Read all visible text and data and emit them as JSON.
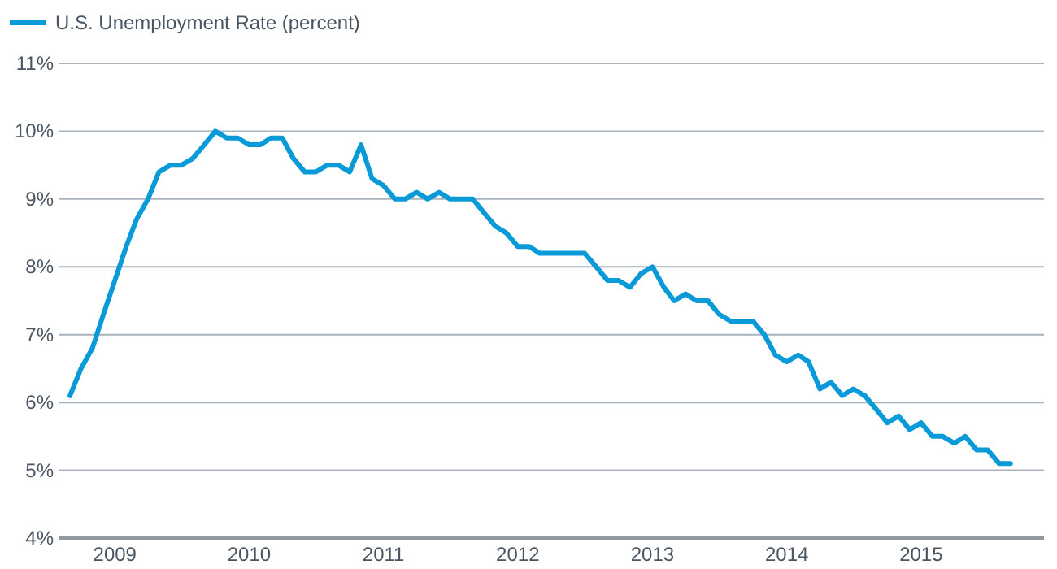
{
  "chart_data": {
    "type": "line",
    "legend": "top left",
    "grid": "y",
    "line_style": "solid",
    "marker": "none",
    "x": [
      "2008-09",
      "2008-10",
      "2008-11",
      "2008-12",
      "2009-01",
      "2009-02",
      "2009-03",
      "2009-04",
      "2009-05",
      "2009-06",
      "2009-07",
      "2009-08",
      "2009-09",
      "2009-10",
      "2009-11",
      "2009-12",
      "2010-01",
      "2010-02",
      "2010-03",
      "2010-04",
      "2010-05",
      "2010-06",
      "2010-07",
      "2010-08",
      "2010-09",
      "2010-10",
      "2010-11",
      "2010-12",
      "2011-01",
      "2011-02",
      "2011-03",
      "2011-04",
      "2011-05",
      "2011-06",
      "2011-07",
      "2011-08",
      "2011-09",
      "2011-10",
      "2011-11",
      "2011-12",
      "2012-01",
      "2012-02",
      "2012-03",
      "2012-04",
      "2012-05",
      "2012-06",
      "2012-07",
      "2012-08",
      "2012-09",
      "2012-10",
      "2012-11",
      "2012-12",
      "2013-01",
      "2013-02",
      "2013-03",
      "2013-04",
      "2013-05",
      "2013-06",
      "2013-07",
      "2013-08",
      "2013-09",
      "2013-10",
      "2013-11",
      "2013-12",
      "2014-01",
      "2014-02",
      "2014-03",
      "2014-04",
      "2014-05",
      "2014-06",
      "2014-07",
      "2014-08",
      "2014-09",
      "2014-10",
      "2014-11",
      "2014-12",
      "2015-01",
      "2015-02",
      "2015-03",
      "2015-04",
      "2015-05",
      "2015-06",
      "2015-07",
      "2015-08",
      "2015-09"
    ],
    "series": [
      {
        "name": "U.S. Unemployment Rate (percent)",
        "color": "#0b9ad8",
        "values": [
          6.1,
          6.5,
          6.8,
          7.3,
          7.8,
          8.3,
          8.7,
          9.0,
          9.4,
          9.5,
          9.5,
          9.6,
          9.8,
          10.0,
          9.9,
          9.9,
          9.8,
          9.8,
          9.9,
          9.9,
          9.6,
          9.4,
          9.4,
          9.5,
          9.5,
          9.4,
          9.8,
          9.3,
          9.2,
          9.0,
          9.0,
          9.1,
          9.0,
          9.1,
          9.0,
          9.0,
          9.0,
          8.8,
          8.6,
          8.5,
          8.3,
          8.3,
          8.2,
          8.2,
          8.2,
          8.2,
          8.2,
          8.0,
          7.8,
          7.8,
          7.7,
          7.9,
          8.0,
          7.7,
          7.5,
          7.6,
          7.5,
          7.5,
          7.3,
          7.2,
          7.2,
          7.2,
          7.0,
          6.7,
          6.6,
          6.7,
          6.6,
          6.2,
          6.3,
          6.1,
          6.2,
          6.1,
          5.9,
          5.7,
          5.8,
          5.6,
          5.7,
          5.5,
          5.5,
          5.4,
          5.5,
          5.3,
          5.3,
          5.1,
          5.1
        ]
      }
    ],
    "xlim": [
      "2008-08",
      "2015-12"
    ],
    "xticks": [
      {
        "value": "2009-01",
        "label": "2009"
      },
      {
        "value": "2010-01",
        "label": "2010"
      },
      {
        "value": "2011-01",
        "label": "2011"
      },
      {
        "value": "2012-01",
        "label": "2012"
      },
      {
        "value": "2013-01",
        "label": "2013"
      },
      {
        "value": "2014-01",
        "label": "2014"
      },
      {
        "value": "2015-01",
        "label": "2015"
      }
    ],
    "ylim": [
      4,
      11
    ],
    "yticks": [
      {
        "value": 4,
        "label": "4%"
      },
      {
        "value": 5,
        "label": "5%"
      },
      {
        "value": 6,
        "label": "6%"
      },
      {
        "value": 7,
        "label": "7%"
      },
      {
        "value": 8,
        "label": "8%"
      },
      {
        "value": 9,
        "label": "9%"
      },
      {
        "value": 10,
        "label": "10%"
      },
      {
        "value": 11,
        "label": "11%"
      }
    ]
  }
}
